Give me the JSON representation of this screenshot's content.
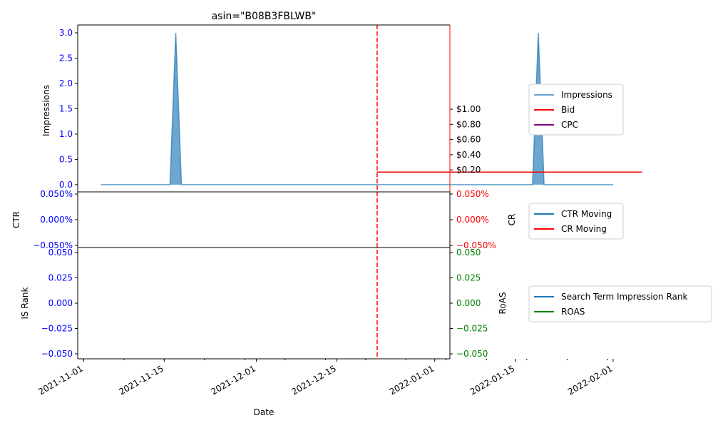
{
  "chart_data": [
    {
      "type": "area",
      "title": "asin=\"B08B3FBLWB\"",
      "ylabel_left": "Impressions",
      "ylabel_right": "",
      "ylim_left": [
        0,
        3.15
      ],
      "yticks_left": [
        "0.0",
        "0.5",
        "1.0",
        "1.5",
        "2.0",
        "2.5",
        "3.0"
      ],
      "yticks_right": [
        "$0.20",
        "$0.40",
        "$0.60",
        "$0.80",
        "$1.00"
      ],
      "vline_date": "2021-12-22",
      "series": [
        {
          "name": "Impressions",
          "axis": "left",
          "color": "#1f77b4",
          "x": [
            "2021-11-04",
            "2021-11-16",
            "2021-11-17",
            "2021-11-18",
            "2022-01-18",
            "2022-01-19",
            "2022-01-20",
            "2022-02-01"
          ],
          "y": [
            0,
            0,
            3,
            0,
            0,
            3,
            0,
            0
          ]
        },
        {
          "name": "Bid",
          "axis": "right",
          "color": "#ff0000",
          "x": [
            "2021-12-22",
            "2022-02-06"
          ],
          "y": [
            0.17,
            0.17
          ]
        },
        {
          "name": "CPC",
          "axis": "right",
          "color": "#800080",
          "x": [],
          "y": []
        }
      ],
      "legend": [
        "Impressions",
        "Bid",
        "CPC"
      ]
    },
    {
      "type": "line",
      "ylabel_left": "CTR",
      "ylabel_right": "CR",
      "yticks_left": [
        "0.050%",
        "0.000%",
        "−0.050%"
      ],
      "yticks_right": [
        "0.050%",
        "0.000%",
        "−0.050%"
      ],
      "series": [
        {
          "name": "CTR Moving",
          "axis": "left",
          "color": "#1f77b4",
          "x": [],
          "y": []
        },
        {
          "name": "CR Moving",
          "axis": "right",
          "color": "#ff0000",
          "x": [],
          "y": []
        }
      ],
      "legend": [
        "CTR Moving",
        "CR Moving"
      ]
    },
    {
      "type": "line",
      "ylabel_left": "IS Rank",
      "ylabel_right": "RoAS",
      "xlabel": "Date",
      "yticks_left": [
        "0.050",
        "0.025",
        "0.000",
        "−0.025",
        "−0.050"
      ],
      "yticks_right": [
        "0.050",
        "0.025",
        "0.000",
        "−0.025",
        "−0.050"
      ],
      "xticks": [
        "2021-11-01",
        "2021-11-15",
        "2021-12-01",
        "2021-12-15",
        "2022-01-01",
        "2022-01-15",
        "2022-02-01"
      ],
      "series": [
        {
          "name": "Search Term Impression Rank",
          "axis": "left",
          "color": "#1f77b4",
          "x": [],
          "y": []
        },
        {
          "name": "ROAS",
          "axis": "right",
          "color": "#008000",
          "x": [],
          "y": []
        }
      ],
      "legend": [
        "Search Term Impression Rank",
        "ROAS"
      ]
    }
  ]
}
